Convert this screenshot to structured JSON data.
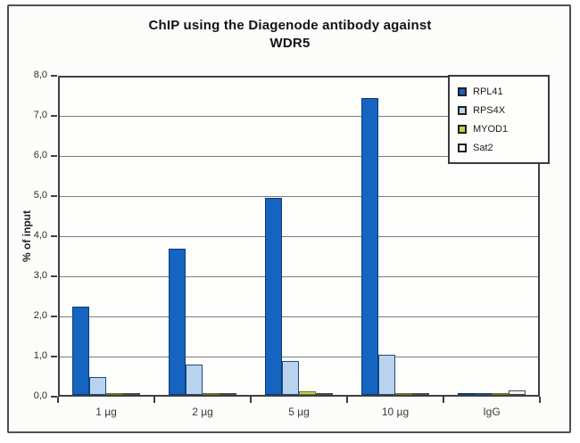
{
  "title": {
    "line1": "ChIP using the Diagenode antibody against",
    "line2": "WDR5"
  },
  "y_axis": {
    "label": "% of input",
    "tick_labels": [
      "0,0",
      "1,0",
      "2,0",
      "3,0",
      "4,0",
      "5,0",
      "6,0",
      "7,0",
      "8,0"
    ],
    "min": 0,
    "max": 8,
    "step": 1
  },
  "x_axis": {
    "categories": [
      "1 µg",
      "2 µg",
      "5 µg",
      "10 µg",
      "IgG"
    ]
  },
  "legend": {
    "position": "top-right",
    "entries": [
      "RPL41",
      "RPS4X",
      "MYOD1",
      "Sat2"
    ]
  },
  "chart_data": {
    "type": "bar",
    "title": "ChIP using the Diagenode antibody against WDR5",
    "xlabel": "",
    "ylabel": "% of input",
    "ylim": [
      0,
      8
    ],
    "grid": true,
    "legend_position": "top-right",
    "categories": [
      "1 µg",
      "2 µg",
      "5 µg",
      "10 µg",
      "IgG"
    ],
    "series": [
      {
        "name": "RPL41",
        "color": "#1565c0",
        "border": "#0b3c78",
        "values": [
          2.2,
          3.65,
          4.9,
          7.4,
          0.02
        ]
      },
      {
        "name": "RPS4X",
        "color": "#b9d3ee",
        "border": "#1c4a7e",
        "values": [
          0.45,
          0.75,
          0.85,
          1.0,
          0.05
        ]
      },
      {
        "name": "MYOD1",
        "color": "#c5ce4d",
        "border": "#6f732b",
        "values": [
          0.02,
          0.02,
          0.08,
          0.03,
          0.04
        ]
      },
      {
        "name": "Sat2",
        "color": "#f4f4ef",
        "border": "#4a4a4a",
        "values": [
          0.02,
          0.02,
          0.04,
          0.03,
          0.1
        ]
      }
    ]
  },
  "colors": {
    "frame_border": "#4f4f4f",
    "plot_border": "#3f3f3f",
    "gridline": "#7d7d7d",
    "background": "#fcfcfa"
  }
}
